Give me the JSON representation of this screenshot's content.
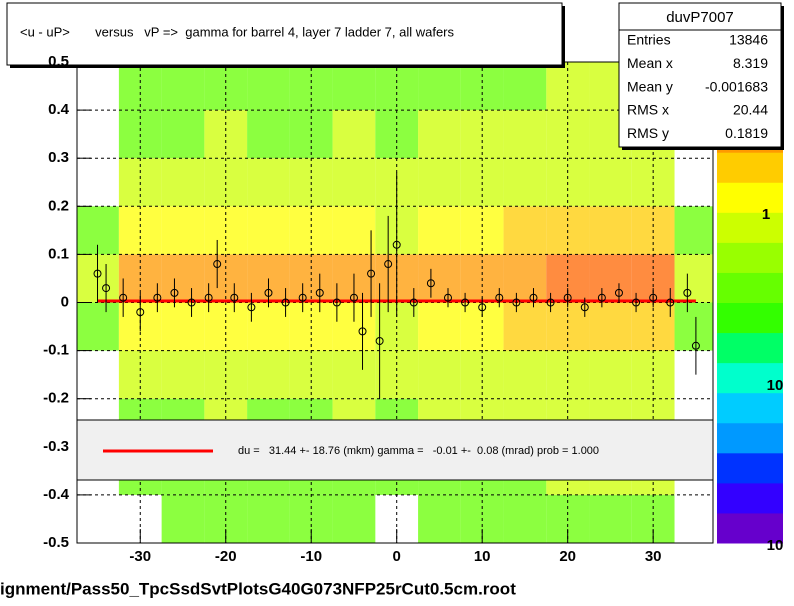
{
  "chart_data": {
    "type": "heatmap",
    "title": "<u - uP>       versus   vP =>  gamma for barrel 4, layer 7 ladder 7, all wafers",
    "footer": "ignment/Pass50_TpcSsdSvtPlotsG40G073NFP25rCut0.5cm.root",
    "xlim": [
      -37.4,
      37
    ],
    "ylim": [
      -0.5,
      0.5
    ],
    "xticks": [
      -30,
      -20,
      -10,
      0,
      10,
      20,
      30
    ],
    "yticks": [
      -0.5,
      -0.4,
      -0.3,
      -0.2,
      -0.1,
      0,
      0.1,
      0.2,
      0.3,
      0.4,
      0.5
    ],
    "grid": true,
    "xbins": [
      -37.5,
      -32.5,
      -27.5,
      -22.5,
      -17.5,
      -12.5,
      -7.5,
      -2.5,
      2.5,
      7.5,
      12.5,
      17.5,
      22.5,
      27.5,
      32.5,
      37.5
    ],
    "ybins": [
      -0.5,
      -0.4,
      -0.3,
      -0.2,
      -0.1,
      0,
      0.1,
      0.2,
      0.3,
      0.4,
      0.5
    ],
    "z": [
      [
        0,
        0,
        1,
        1,
        1,
        1,
        1,
        0,
        1,
        1,
        1,
        1,
        1,
        1,
        0
      ],
      [
        0,
        1,
        1,
        1,
        1,
        1,
        1,
        1,
        1,
        1,
        1,
        2,
        2,
        2,
        0
      ],
      [
        0,
        1,
        1,
        2,
        1,
        1,
        2,
        1,
        2,
        2,
        2,
        2,
        3,
        2,
        0
      ],
      [
        0,
        2,
        2,
        2,
        2,
        2,
        2,
        2,
        2,
        3,
        3,
        3,
        3,
        3,
        0
      ],
      [
        1,
        4,
        4,
        4,
        4,
        4,
        4,
        3,
        5,
        5,
        6,
        6,
        7,
        7,
        1
      ],
      [
        2,
        9,
        9,
        9,
        9,
        9,
        9,
        8,
        10,
        11,
        12,
        14,
        16,
        16,
        3
      ],
      [
        1,
        4,
        4,
        4,
        4,
        4,
        4,
        3,
        5,
        5,
        6,
        6,
        7,
        7,
        1
      ],
      [
        0,
        2,
        2,
        2,
        2,
        2,
        2,
        2,
        2,
        3,
        3,
        3,
        3,
        3,
        0
      ],
      [
        0,
        1,
        1,
        2,
        1,
        1,
        2,
        1,
        2,
        2,
        2,
        2,
        3,
        2,
        0
      ],
      [
        0,
        1,
        1,
        1,
        1,
        1,
        1,
        1,
        1,
        1,
        1,
        2,
        2,
        2,
        0
      ]
    ],
    "zlim": [
      1,
      16
    ],
    "zlabels": [
      "1",
      "10",
      "10"
    ],
    "profile": {
      "x": [
        -35,
        -34,
        -32,
        -30,
        -28,
        -26,
        -24,
        -22,
        -21,
        -19,
        -17,
        -15,
        -13,
        -11,
        -9,
        -7,
        -5,
        -4,
        -3,
        -2,
        -1,
        0,
        2,
        4,
        6,
        8,
        10,
        12,
        14,
        16,
        18,
        20,
        22,
        24,
        26,
        28,
        30,
        32,
        34,
        35
      ],
      "values": [
        0.06,
        0.03,
        0.01,
        -0.02,
        0.01,
        0.02,
        0.0,
        0.01,
        0.08,
        0.01,
        -0.01,
        0.02,
        0.0,
        0.01,
        0.02,
        0.0,
        0.01,
        -0.06,
        0.06,
        -0.08,
        0.08,
        0.12,
        0.0,
        0.04,
        0.01,
        0.0,
        -0.01,
        0.01,
        0.0,
        0.01,
        0.0,
        0.01,
        -0.01,
        0.01,
        0.02,
        0.0,
        0.01,
        0.0,
        0.02,
        -0.09
      ],
      "errors": [
        0.06,
        0.05,
        0.04,
        0.04,
        0.03,
        0.03,
        0.03,
        0.03,
        0.05,
        0.03,
        0.03,
        0.03,
        0.03,
        0.03,
        0.04,
        0.04,
        0.05,
        0.08,
        0.09,
        0.12,
        0.1,
        0.15,
        0.03,
        0.03,
        0.02,
        0.02,
        0.02,
        0.02,
        0.02,
        0.02,
        0.02,
        0.02,
        0.02,
        0.02,
        0.02,
        0.02,
        0.02,
        0.03,
        0.04,
        0.06
      ]
    },
    "fit": {
      "color": "#ff0000",
      "x": [
        -35,
        35
      ],
      "values": [
        0.003,
        0.003
      ],
      "label": "du =   31.44 +- 18.76 (mkm) gamma =   -0.01 +-  0.08 (mrad) prob = 1.000"
    },
    "stats": {
      "name": "duvP7007",
      "rows": [
        [
          "Entries",
          "13846"
        ],
        [
          "Mean x",
          "8.319"
        ],
        [
          "Mean y",
          "-0.001683"
        ],
        [
          "RMS x",
          "20.44"
        ],
        [
          "RMS y",
          "0.1819"
        ]
      ]
    }
  }
}
